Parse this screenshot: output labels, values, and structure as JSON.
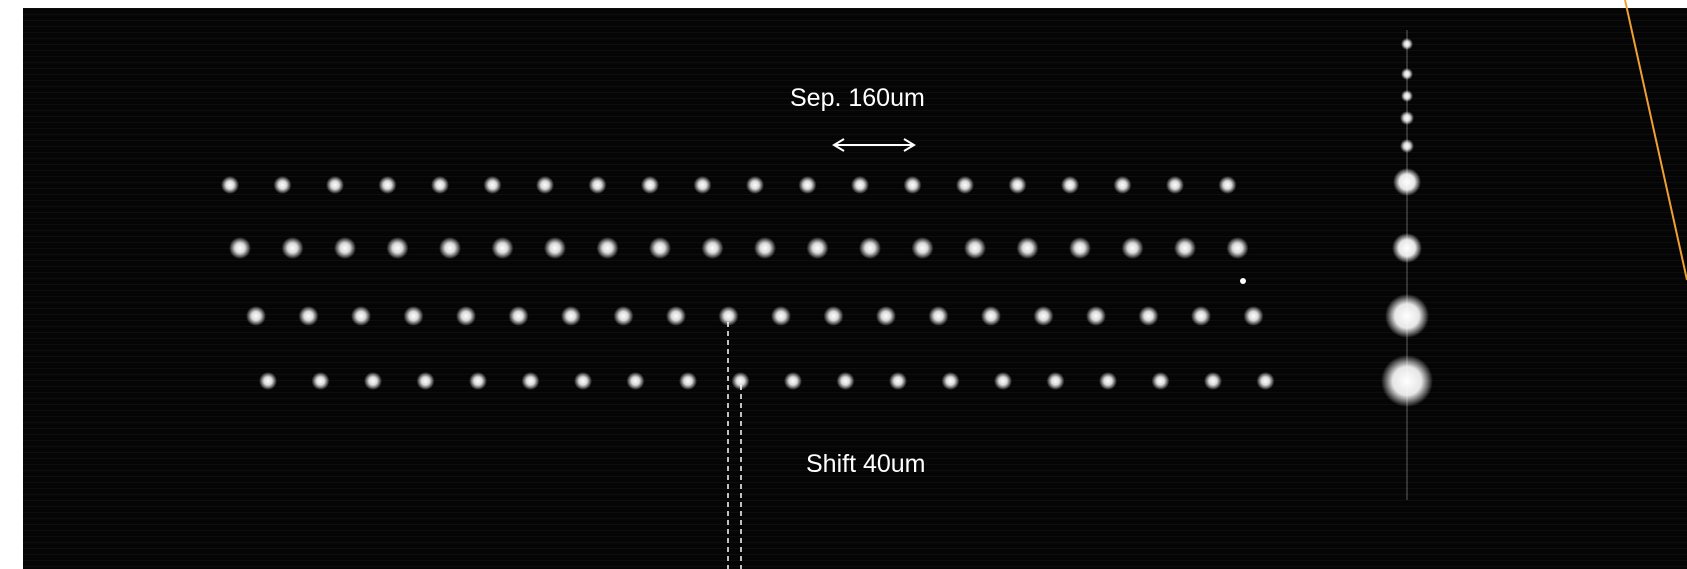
{
  "annotations": {
    "separation_label": "Sep. 160um",
    "shift_label": "Shift 40um"
  },
  "colors": {
    "background": "#050505",
    "spot": "#ffffff",
    "text": "#ffffff",
    "accent_line": "#f0a030"
  },
  "spot_rows": [
    {
      "name": "row-1",
      "count": 20
    },
    {
      "name": "row-2",
      "count": 20
    },
    {
      "name": "row-3",
      "count": 20
    },
    {
      "name": "row-4",
      "count": 20
    }
  ],
  "reference_column_spots": 9
}
